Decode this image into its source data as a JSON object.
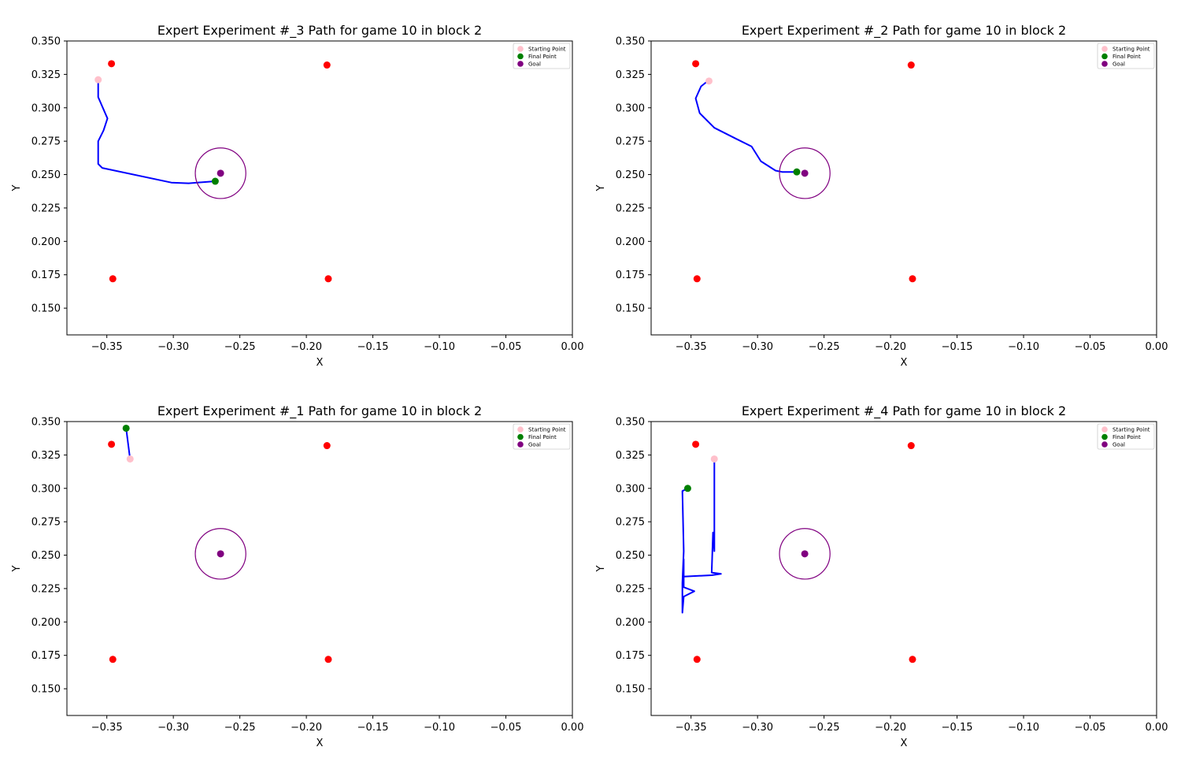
{
  "colors": {
    "path": "#0000ff",
    "start": "#ffc0cb",
    "final": "#008000",
    "goal": "#800080",
    "obstacle": "#ff0000",
    "axes": "#000000",
    "background": "#ffffff"
  },
  "chart_data": [
    {
      "type": "line",
      "title": "Expert Experiment #_3 Path for game 10 in block 2",
      "xlabel": "X",
      "ylabel": "Y",
      "xlim": [
        -0.38,
        0.0
      ],
      "ylim": [
        0.13,
        0.35
      ],
      "xticks": [
        "−0.35",
        "−0.30",
        "−0.25",
        "−0.20",
        "−0.15",
        "−0.10",
        "−0.05",
        "0.00"
      ],
      "yticks": [
        "0.150",
        "0.175",
        "0.200",
        "0.225",
        "0.250",
        "0.275",
        "0.300",
        "0.325",
        "0.350"
      ],
      "grid": false,
      "legend": {
        "position": "top-right",
        "entries": [
          "Starting Point",
          "Final Point",
          "Goal"
        ]
      },
      "obstacles": [
        [
          -0.3465,
          0.333
        ],
        [
          -0.1845,
          0.332
        ],
        [
          -0.3455,
          0.172
        ],
        [
          -0.1835,
          0.172
        ]
      ],
      "goal": [
        -0.2645,
        0.251
      ],
      "goal_circle_radius": 0.019,
      "start": [
        -0.3565,
        0.321
      ],
      "final": [
        -0.2685,
        0.245
      ],
      "path": [
        [
          -0.3565,
          0.322
        ],
        [
          -0.3565,
          0.308
        ],
        [
          -0.3495,
          0.292
        ],
        [
          -0.3525,
          0.283
        ],
        [
          -0.3565,
          0.275
        ],
        [
          -0.3565,
          0.258
        ],
        [
          -0.3535,
          0.255
        ],
        [
          -0.3015,
          0.244
        ],
        [
          -0.2885,
          0.2435
        ],
        [
          -0.2685,
          0.245
        ]
      ]
    },
    {
      "type": "line",
      "title": "Expert Experiment #_2 Path for game 10 in block 2",
      "xlabel": "X",
      "ylabel": "Y",
      "xlim": [
        -0.38,
        0.0
      ],
      "ylim": [
        0.13,
        0.35
      ],
      "xticks": [
        "−0.35",
        "−0.30",
        "−0.25",
        "−0.20",
        "−0.15",
        "−0.10",
        "−0.05",
        "0.00"
      ],
      "yticks": [
        "0.150",
        "0.175",
        "0.200",
        "0.225",
        "0.250",
        "0.275",
        "0.300",
        "0.325",
        "0.350"
      ],
      "grid": false,
      "legend": {
        "position": "top-right",
        "entries": [
          "Starting Point",
          "Final Point",
          "Goal"
        ]
      },
      "obstacles": [
        [
          -0.3465,
          0.333
        ],
        [
          -0.1845,
          0.332
        ],
        [
          -0.3455,
          0.172
        ],
        [
          -0.1835,
          0.172
        ]
      ],
      "goal": [
        -0.2645,
        0.251
      ],
      "goal_circle_radius": 0.019,
      "start": [
        -0.3365,
        0.32
      ],
      "final": [
        -0.2705,
        0.252
      ],
      "path": [
        [
          -0.3375,
          0.32
        ],
        [
          -0.3425,
          0.316
        ],
        [
          -0.3465,
          0.307
        ],
        [
          -0.3435,
          0.296
        ],
        [
          -0.3325,
          0.285
        ],
        [
          -0.3165,
          0.277
        ],
        [
          -0.3045,
          0.271
        ],
        [
          -0.2975,
          0.26
        ],
        [
          -0.2865,
          0.253
        ],
        [
          -0.2815,
          0.252
        ],
        [
          -0.2705,
          0.252
        ]
      ]
    },
    {
      "type": "line",
      "title": "Expert Experiment #_1 Path for game 10 in block 2",
      "xlabel": "X",
      "ylabel": "Y",
      "xlim": [
        -0.38,
        0.0
      ],
      "ylim": [
        0.13,
        0.35
      ],
      "xticks": [
        "−0.35",
        "−0.30",
        "−0.25",
        "−0.20",
        "−0.15",
        "−0.10",
        "−0.05",
        "0.00"
      ],
      "yticks": [
        "0.150",
        "0.175",
        "0.200",
        "0.225",
        "0.250",
        "0.275",
        "0.300",
        "0.325",
        "0.350"
      ],
      "grid": false,
      "legend": {
        "position": "top-right",
        "entries": [
          "Starting Point",
          "Final Point",
          "Goal"
        ]
      },
      "obstacles": [
        [
          -0.3465,
          0.333
        ],
        [
          -0.1845,
          0.332
        ],
        [
          -0.3455,
          0.172
        ],
        [
          -0.1835,
          0.172
        ]
      ],
      "goal": [
        -0.2645,
        0.251
      ],
      "goal_circle_radius": 0.019,
      "start": [
        -0.3325,
        0.322
      ],
      "final": [
        -0.3355,
        0.345
      ],
      "path": [
        [
          -0.3325,
          0.322
        ],
        [
          -0.3355,
          0.345
        ]
      ]
    },
    {
      "type": "line",
      "title": "Expert Experiment #_4 Path for game 10 in block 2",
      "xlabel": "X",
      "ylabel": "Y",
      "xlim": [
        -0.38,
        0.0
      ],
      "ylim": [
        0.13,
        0.35
      ],
      "xticks": [
        "−0.35",
        "−0.30",
        "−0.25",
        "−0.20",
        "−0.15",
        "−0.10",
        "−0.05",
        "0.00"
      ],
      "yticks": [
        "0.150",
        "0.175",
        "0.200",
        "0.225",
        "0.250",
        "0.275",
        "0.300",
        "0.325",
        "0.350"
      ],
      "grid": false,
      "legend": {
        "position": "top-right",
        "entries": [
          "Starting Point",
          "Final Point",
          "Goal"
        ]
      },
      "obstacles": [
        [
          -0.3465,
          0.333
        ],
        [
          -0.1845,
          0.332
        ],
        [
          -0.3455,
          0.172
        ],
        [
          -0.1835,
          0.172
        ]
      ],
      "goal": [
        -0.2645,
        0.251
      ],
      "goal_circle_radius": 0.019,
      "start": [
        -0.3325,
        0.322
      ],
      "final": [
        -0.3525,
        0.3
      ],
      "path": [
        [
          -0.3325,
          0.322
        ],
        [
          -0.3325,
          0.253
        ],
        [
          -0.3335,
          0.267
        ],
        [
          -0.3345,
          0.237
        ],
        [
          -0.3275,
          0.236
        ],
        [
          -0.3345,
          0.235
        ],
        [
          -0.3555,
          0.234
        ],
        [
          -0.3555,
          0.247
        ],
        [
          -0.3555,
          0.226
        ],
        [
          -0.3475,
          0.223
        ],
        [
          -0.3555,
          0.219
        ],
        [
          -0.3565,
          0.207
        ],
        [
          -0.3565,
          0.229
        ],
        [
          -0.3555,
          0.253
        ],
        [
          -0.3565,
          0.298
        ],
        [
          -0.3525,
          0.3
        ]
      ]
    }
  ]
}
